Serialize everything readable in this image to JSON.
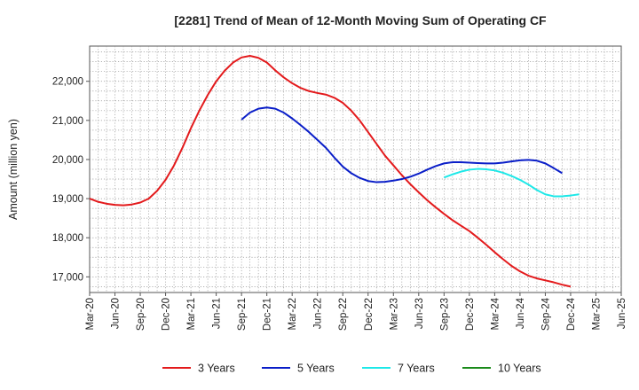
{
  "chart_data": {
    "type": "line",
    "title": "[2281]  Trend of Mean of 12-Month Moving Sum of Operating CF",
    "xlabel": "",
    "ylabel": "Amount (million yen)",
    "ylim": [
      16600,
      22900
    ],
    "yticks": [
      17000,
      18000,
      19000,
      20000,
      21000,
      22000
    ],
    "ytick_labels": [
      "17,000",
      "18,000",
      "19,000",
      "20,000",
      "21,000",
      "22,000"
    ],
    "xlim": [
      0,
      63
    ],
    "xticks": [
      0,
      3,
      6,
      9,
      12,
      15,
      18,
      21,
      24,
      27,
      30,
      33,
      36,
      39,
      42,
      45,
      48,
      51,
      54,
      57,
      60,
      63
    ],
    "xtick_labels": [
      "Mar-20",
      "Jun-20",
      "Sep-20",
      "Dec-20",
      "Mar-21",
      "Jun-21",
      "Sep-21",
      "Dec-21",
      "Mar-22",
      "Jun-22",
      "Sep-22",
      "Dec-22",
      "Mar-23",
      "Jun-23",
      "Sep-23",
      "Dec-23",
      "Mar-24",
      "Jun-24",
      "Sep-24",
      "Dec-24",
      "Mar-25",
      "Jun-25"
    ],
    "grid": true,
    "legend_position": "bottom",
    "series": [
      {
        "name": "3 Years",
        "color": "#e31a1c",
        "points": [
          [
            0,
            19000
          ],
          [
            1,
            18920
          ],
          [
            2,
            18870
          ],
          [
            3,
            18840
          ],
          [
            4,
            18830
          ],
          [
            5,
            18850
          ],
          [
            6,
            18900
          ],
          [
            7,
            19000
          ],
          [
            8,
            19200
          ],
          [
            9,
            19480
          ],
          [
            10,
            19850
          ],
          [
            11,
            20300
          ],
          [
            12,
            20800
          ],
          [
            13,
            21250
          ],
          [
            14,
            21650
          ],
          [
            15,
            22000
          ],
          [
            16,
            22270
          ],
          [
            17,
            22480
          ],
          [
            18,
            22610
          ],
          [
            19,
            22650
          ],
          [
            20,
            22600
          ],
          [
            21,
            22480
          ],
          [
            22,
            22280
          ],
          [
            23,
            22100
          ],
          [
            24,
            21950
          ],
          [
            25,
            21830
          ],
          [
            26,
            21750
          ],
          [
            27,
            21700
          ],
          [
            28,
            21660
          ],
          [
            29,
            21580
          ],
          [
            30,
            21450
          ],
          [
            31,
            21250
          ],
          [
            32,
            21000
          ],
          [
            33,
            20700
          ],
          [
            34,
            20400
          ],
          [
            35,
            20100
          ],
          [
            36,
            19850
          ],
          [
            37,
            19600
          ],
          [
            38,
            19370
          ],
          [
            39,
            19160
          ],
          [
            40,
            18960
          ],
          [
            41,
            18780
          ],
          [
            42,
            18610
          ],
          [
            43,
            18450
          ],
          [
            44,
            18310
          ],
          [
            45,
            18170
          ],
          [
            46,
            18000
          ],
          [
            47,
            17820
          ],
          [
            48,
            17630
          ],
          [
            49,
            17450
          ],
          [
            50,
            17280
          ],
          [
            51,
            17140
          ],
          [
            52,
            17030
          ],
          [
            53,
            16960
          ],
          [
            54,
            16910
          ],
          [
            55,
            16860
          ],
          [
            56,
            16800
          ],
          [
            57,
            16750
          ]
        ]
      },
      {
        "name": "5 Years",
        "color": "#0a1ec8",
        "points": [
          [
            18,
            21020
          ],
          [
            19,
            21200
          ],
          [
            20,
            21300
          ],
          [
            21,
            21330
          ],
          [
            22,
            21300
          ],
          [
            23,
            21200
          ],
          [
            24,
            21050
          ],
          [
            25,
            20880
          ],
          [
            26,
            20700
          ],
          [
            27,
            20500
          ],
          [
            28,
            20300
          ],
          [
            29,
            20050
          ],
          [
            30,
            19820
          ],
          [
            31,
            19650
          ],
          [
            32,
            19530
          ],
          [
            33,
            19450
          ],
          [
            34,
            19420
          ],
          [
            35,
            19430
          ],
          [
            36,
            19460
          ],
          [
            37,
            19500
          ],
          [
            38,
            19560
          ],
          [
            39,
            19640
          ],
          [
            40,
            19740
          ],
          [
            41,
            19830
          ],
          [
            42,
            19900
          ],
          [
            43,
            19930
          ],
          [
            44,
            19930
          ],
          [
            45,
            19920
          ],
          [
            46,
            19910
          ],
          [
            47,
            19900
          ],
          [
            48,
            19900
          ],
          [
            49,
            19920
          ],
          [
            50,
            19950
          ],
          [
            51,
            19980
          ],
          [
            52,
            19990
          ],
          [
            53,
            19970
          ],
          [
            54,
            19900
          ],
          [
            55,
            19780
          ],
          [
            56,
            19650
          ]
        ]
      },
      {
        "name": "7 Years",
        "color": "#1ee8e8",
        "points": [
          [
            42,
            19540
          ],
          [
            43,
            19620
          ],
          [
            44,
            19690
          ],
          [
            45,
            19740
          ],
          [
            46,
            19760
          ],
          [
            47,
            19750
          ],
          [
            48,
            19720
          ],
          [
            49,
            19660
          ],
          [
            50,
            19580
          ],
          [
            51,
            19480
          ],
          [
            52,
            19360
          ],
          [
            53,
            19220
          ],
          [
            54,
            19110
          ],
          [
            55,
            19060
          ],
          [
            56,
            19060
          ],
          [
            57,
            19080
          ],
          [
            58,
            19110
          ]
        ]
      },
      {
        "name": "10 Years",
        "color": "#1a8a1a",
        "points": []
      }
    ]
  }
}
